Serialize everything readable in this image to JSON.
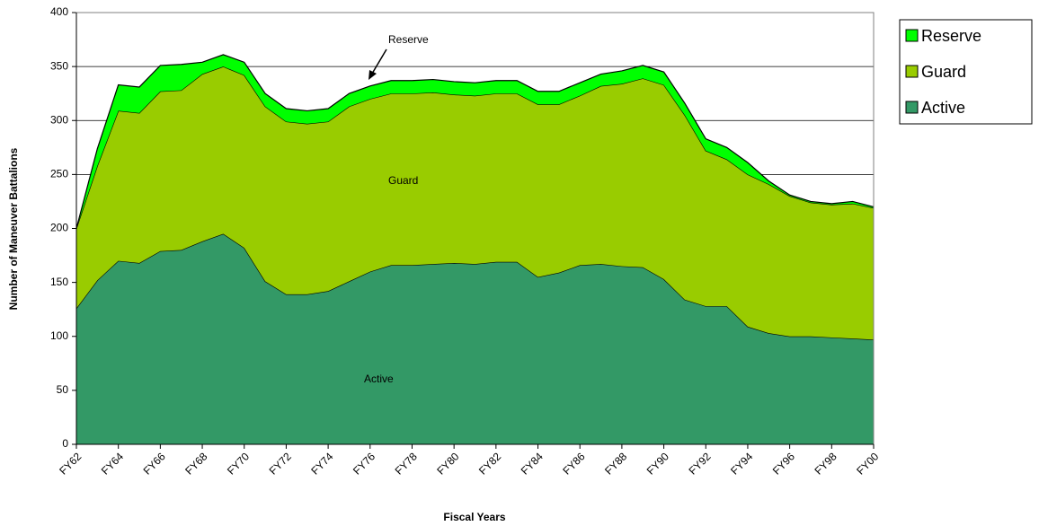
{
  "chart_data": {
    "type": "stacked_area",
    "xlabel": "Fiscal Years",
    "ylabel": "Number of Maneuver Battalions",
    "categories": [
      "FY62",
      null,
      "FY64",
      null,
      "FY66",
      null,
      "FY68",
      null,
      "FY70",
      null,
      "FY72",
      null,
      "FY74",
      null,
      "FY76",
      null,
      "FY78",
      null,
      "FY80",
      null,
      "FY82",
      null,
      "FY84",
      null,
      "FY86",
      null,
      "FY88",
      null,
      "FY90",
      null,
      "FY92",
      null,
      "FY94",
      null,
      "FY96",
      null,
      "FY98",
      null,
      "FY00"
    ],
    "series": [
      {
        "name": "Active",
        "color": "#339966",
        "values": [
          126,
          152,
          170,
          168,
          179,
          180,
          188,
          195,
          182,
          151,
          139,
          139,
          142,
          151,
          160,
          166,
          166,
          167,
          168,
          167,
          169,
          169,
          155,
          159,
          166,
          167,
          165,
          164,
          153,
          134,
          128,
          128,
          109,
          103,
          100,
          100,
          99,
          98,
          97
        ]
      },
      {
        "name": "Guard",
        "color": "#99cc00",
        "values": [
          74,
          106,
          139,
          139,
          148,
          148,
          155,
          155,
          160,
          162,
          160,
          158,
          157,
          162,
          160,
          159,
          159,
          159,
          156,
          156,
          156,
          156,
          160,
          156,
          157,
          165,
          169,
          175,
          180,
          171,
          144,
          136,
          141,
          138,
          130,
          124,
          123,
          125,
          122
        ]
      },
      {
        "name": "Reserve",
        "color": "#00ff00",
        "values": [
          0,
          16,
          24,
          24,
          24,
          24,
          11,
          11,
          12,
          12,
          12,
          12,
          12,
          12,
          12,
          12,
          12,
          12,
          12,
          12,
          12,
          12,
          12,
          12,
          12,
          11,
          12,
          12,
          12,
          11,
          11,
          11,
          11,
          3,
          1,
          1,
          1,
          2,
          1
        ]
      }
    ],
    "annotations": [
      "Reserve",
      "Guard",
      "Active"
    ],
    "ylim": [
      0,
      400
    ],
    "yticks": [
      0,
      50,
      100,
      150,
      200,
      250,
      300,
      350,
      400
    ],
    "grid": true,
    "legend": "right"
  }
}
